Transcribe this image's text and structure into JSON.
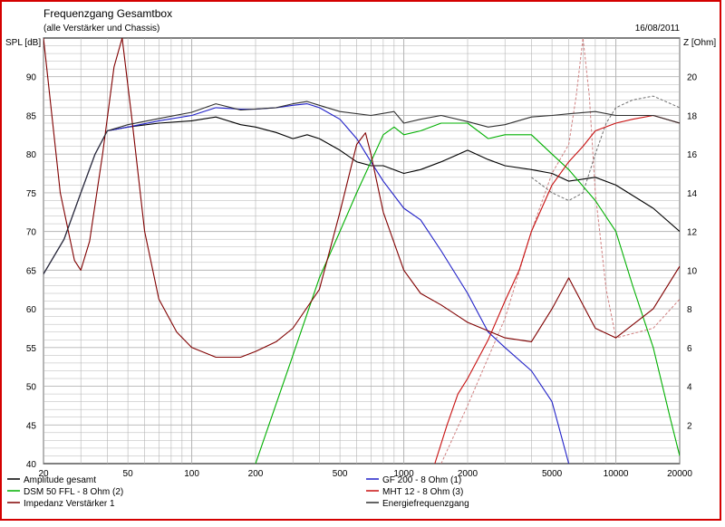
{
  "header": {
    "title": "Frequenzgang Gesamtbox",
    "subtitle": "(alle Verstärker und Chassis)",
    "date": "16/08/2011"
  },
  "chart_data": {
    "type": "line",
    "title": "Frequenzgang Gesamtbox",
    "subtitle": "(alle Verstärker und Chassis)",
    "xlabel": "",
    "ylabel_left": "SPL [dB]",
    "ylabel_right": "Z [Ohm]",
    "x_scale": "log",
    "xlim": [
      20,
      20000
    ],
    "ylim_left": [
      40,
      95
    ],
    "ylim_right": [
      0,
      22
    ],
    "x_ticks": [
      20,
      50,
      100,
      200,
      500,
      1000,
      2000,
      5000,
      10000,
      20000
    ],
    "y_ticks_left": [
      40,
      45,
      50,
      55,
      60,
      65,
      70,
      75,
      80,
      85,
      90
    ],
    "y_ticks_right": [
      2,
      4,
      6,
      8,
      10,
      12,
      14,
      16,
      18,
      20
    ],
    "grid": true,
    "legend_position": "bottom",
    "legend_columns": 2,
    "colors": {
      "amplitude": "#000000",
      "gf200": "#2020c8",
      "dsm50": "#00b000",
      "mht12": "#c81010",
      "impedance": "#800000",
      "energy": "#303030",
      "grid": "#b4b4b4",
      "frame": "#d40000"
    },
    "series": [
      {
        "key": "amplitude",
        "name": "Amplitude gesamt",
        "axis": "left",
        "color": "#000000",
        "points": [
          [
            20,
            64.5
          ],
          [
            25,
            69
          ],
          [
            30,
            75
          ],
          [
            35,
            80
          ],
          [
            40,
            83
          ],
          [
            50,
            83.5
          ],
          [
            70,
            84
          ],
          [
            100,
            84.3
          ],
          [
            130,
            84.8
          ],
          [
            170,
            83.8
          ],
          [
            200,
            83.5
          ],
          [
            250,
            82.8
          ],
          [
            300,
            82
          ],
          [
            350,
            82.5
          ],
          [
            400,
            82
          ],
          [
            500,
            80.5
          ],
          [
            600,
            79
          ],
          [
            700,
            78.5
          ],
          [
            800,
            78.5
          ],
          [
            1000,
            77.5
          ],
          [
            1200,
            78
          ],
          [
            1500,
            79
          ],
          [
            2000,
            80.5
          ],
          [
            2500,
            79.3
          ],
          [
            3000,
            78.5
          ],
          [
            4000,
            78
          ],
          [
            5000,
            77.5
          ],
          [
            6000,
            76.5
          ],
          [
            8000,
            77
          ],
          [
            10000,
            76
          ],
          [
            15000,
            73
          ],
          [
            20000,
            70
          ]
        ]
      },
      {
        "key": "gf200",
        "name": "GF 200 - 8 Ohm (1)",
        "axis": "left",
        "color": "#2020c8",
        "points": [
          [
            20,
            64.5
          ],
          [
            25,
            69
          ],
          [
            30,
            75
          ],
          [
            35,
            80
          ],
          [
            40,
            83
          ],
          [
            50,
            83.5
          ],
          [
            70,
            84.3
          ],
          [
            100,
            85
          ],
          [
            130,
            86
          ],
          [
            170,
            85.8
          ],
          [
            200,
            85.8
          ],
          [
            250,
            86
          ],
          [
            300,
            86.3
          ],
          [
            350,
            86.5
          ],
          [
            400,
            86
          ],
          [
            500,
            84.5
          ],
          [
            600,
            82
          ],
          [
            700,
            79
          ],
          [
            800,
            76.5
          ],
          [
            1000,
            73
          ],
          [
            1200,
            71.5
          ],
          [
            1500,
            67.5
          ],
          [
            2000,
            62
          ],
          [
            2500,
            57
          ],
          [
            3000,
            55
          ],
          [
            4000,
            52
          ],
          [
            5000,
            48
          ],
          [
            6000,
            40
          ]
        ]
      },
      {
        "key": "dsm50",
        "name": "DSM 50 FFL - 8 Ohm (2)",
        "axis": "left",
        "color": "#00b000",
        "points": [
          [
            200,
            40
          ],
          [
            300,
            54
          ],
          [
            400,
            64
          ],
          [
            500,
            70
          ],
          [
            600,
            75
          ],
          [
            700,
            79
          ],
          [
            800,
            82.5
          ],
          [
            900,
            83.5
          ],
          [
            1000,
            82.5
          ],
          [
            1200,
            83
          ],
          [
            1500,
            84
          ],
          [
            2000,
            84
          ],
          [
            2500,
            82
          ],
          [
            3000,
            82.5
          ],
          [
            4000,
            82.5
          ],
          [
            5000,
            80
          ],
          [
            6000,
            78
          ],
          [
            8000,
            74
          ],
          [
            10000,
            70
          ],
          [
            12000,
            63
          ],
          [
            15000,
            55
          ],
          [
            18000,
            46
          ],
          [
            20000,
            41
          ]
        ]
      },
      {
        "key": "mht12",
        "name": "MHT 12 - 8 Ohm (3)",
        "axis": "left",
        "color": "#c81010",
        "points": [
          [
            1400,
            40
          ],
          [
            1600,
            45
          ],
          [
            1800,
            49
          ],
          [
            2000,
            51
          ],
          [
            2500,
            56
          ],
          [
            3000,
            61
          ],
          [
            3500,
            65
          ],
          [
            4000,
            70
          ],
          [
            5000,
            76
          ],
          [
            6000,
            79
          ],
          [
            7000,
            81
          ],
          [
            8000,
            83
          ],
          [
            10000,
            84
          ],
          [
            12000,
            84.5
          ],
          [
            15000,
            85
          ],
          [
            20000,
            84
          ]
        ]
      },
      {
        "key": "impedance",
        "name": "Impedanz Verstärker 1",
        "axis": "right",
        "color": "#800000",
        "points": [
          [
            20,
            22
          ],
          [
            24,
            14
          ],
          [
            28,
            10.5
          ],
          [
            30,
            10
          ],
          [
            33,
            11.5
          ],
          [
            38,
            16
          ],
          [
            43,
            20.5
          ],
          [
            47,
            22
          ],
          [
            52,
            18
          ],
          [
            60,
            12
          ],
          [
            70,
            8.5
          ],
          [
            85,
            6.8
          ],
          [
            100,
            6
          ],
          [
            130,
            5.5
          ],
          [
            170,
            5.5
          ],
          [
            200,
            5.8
          ],
          [
            250,
            6.3
          ],
          [
            300,
            7
          ],
          [
            400,
            9
          ],
          [
            500,
            13
          ],
          [
            600,
            16.5
          ],
          [
            660,
            17.1
          ],
          [
            700,
            16
          ],
          [
            800,
            13
          ],
          [
            1000,
            10
          ],
          [
            1200,
            8.8
          ],
          [
            1500,
            8.2
          ],
          [
            2000,
            7.3
          ],
          [
            3000,
            6.5
          ],
          [
            4000,
            6.3
          ],
          [
            5000,
            8
          ],
          [
            6000,
            9.6
          ],
          [
            7000,
            8.2
          ],
          [
            8000,
            7
          ],
          [
            10000,
            6.5
          ],
          [
            15000,
            8
          ],
          [
            20000,
            10.2
          ]
        ]
      },
      {
        "key": "energy",
        "name": "Energiefrequenzgang",
        "axis": "left",
        "color": "#303030",
        "points": [
          [
            20,
            64.5
          ],
          [
            25,
            69
          ],
          [
            30,
            75
          ],
          [
            35,
            80
          ],
          [
            40,
            83
          ],
          [
            50,
            83.8
          ],
          [
            70,
            84.6
          ],
          [
            100,
            85.4
          ],
          [
            130,
            86.5
          ],
          [
            170,
            85.7
          ],
          [
            250,
            86
          ],
          [
            300,
            86.5
          ],
          [
            350,
            86.8
          ],
          [
            400,
            86.3
          ],
          [
            500,
            85.5
          ],
          [
            700,
            85
          ],
          [
            900,
            85.5
          ],
          [
            1000,
            84
          ],
          [
            1200,
            84.5
          ],
          [
            1500,
            85
          ],
          [
            2000,
            84.2
          ],
          [
            2500,
            83.5
          ],
          [
            3000,
            83.8
          ],
          [
            4000,
            84.8
          ],
          [
            5000,
            85
          ],
          [
            6000,
            85.2
          ],
          [
            8000,
            85.5
          ],
          [
            10000,
            85
          ],
          [
            15000,
            85
          ],
          [
            20000,
            84
          ]
        ]
      }
    ],
    "dashed_series": [
      {
        "key": "dashed_impedance",
        "axis": "right",
        "color": "#d08080",
        "points": [
          [
            1500,
            0
          ],
          [
            2000,
            3
          ],
          [
            3000,
            7.5
          ],
          [
            4000,
            12
          ],
          [
            5000,
            15
          ],
          [
            6000,
            16.5
          ],
          [
            6500,
            19
          ],
          [
            7000,
            22
          ],
          [
            7500,
            19
          ],
          [
            8000,
            14
          ],
          [
            9000,
            9
          ],
          [
            10000,
            6.5
          ],
          [
            15000,
            7
          ],
          [
            20000,
            8.5
          ]
        ]
      },
      {
        "key": "dashed_black",
        "axis": "left",
        "color": "#707070",
        "points": [
          [
            4000,
            77
          ],
          [
            5000,
            75
          ],
          [
            6000,
            74
          ],
          [
            7000,
            75
          ],
          [
            8000,
            80
          ],
          [
            9000,
            84
          ],
          [
            10000,
            86
          ],
          [
            12000,
            87
          ],
          [
            15000,
            87.5
          ],
          [
            20000,
            86
          ]
        ]
      }
    ],
    "legend": [
      {
        "series": "amplitude",
        "column": 1
      },
      {
        "series": "gf200",
        "column": 2
      },
      {
        "series": "dsm50",
        "column": 1
      },
      {
        "series": "mht12",
        "column": 2
      },
      {
        "series": "impedance",
        "column": 1
      },
      {
        "series": "energy",
        "column": 2
      }
    ]
  }
}
